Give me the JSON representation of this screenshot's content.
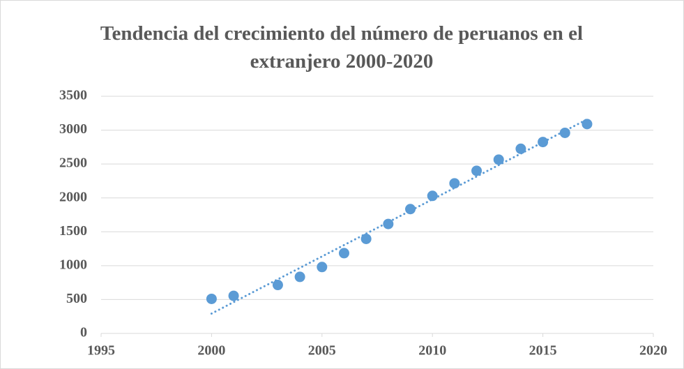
{
  "chart_data": {
    "type": "scatter",
    "title": "Tendencia del crecimiento del número de peruanos en el extranjero 2000-2020",
    "series": [
      {
        "color": "#5b9bd5",
        "x": [
          2000,
          2001,
          2003,
          2004,
          2005,
          2006,
          2007,
          2008,
          2009,
          2010,
          2011,
          2012,
          2013,
          2014,
          2015,
          2016,
          2017
        ],
        "values": [
          510,
          555,
          715,
          835,
          980,
          1185,
          1395,
          1615,
          1835,
          2030,
          2215,
          2400,
          2565,
          2725,
          2825,
          2960,
          3090
        ]
      }
    ],
    "trendline": "linear",
    "xlim": [
      1995,
      2020
    ],
    "xticks": [
      1995,
      2000,
      2005,
      2010,
      2015,
      2020
    ],
    "ylim": [
      0,
      3500
    ],
    "yticks": [
      0,
      500,
      1000,
      1500,
      2000,
      2500,
      3000,
      3500
    ],
    "grid": true
  }
}
